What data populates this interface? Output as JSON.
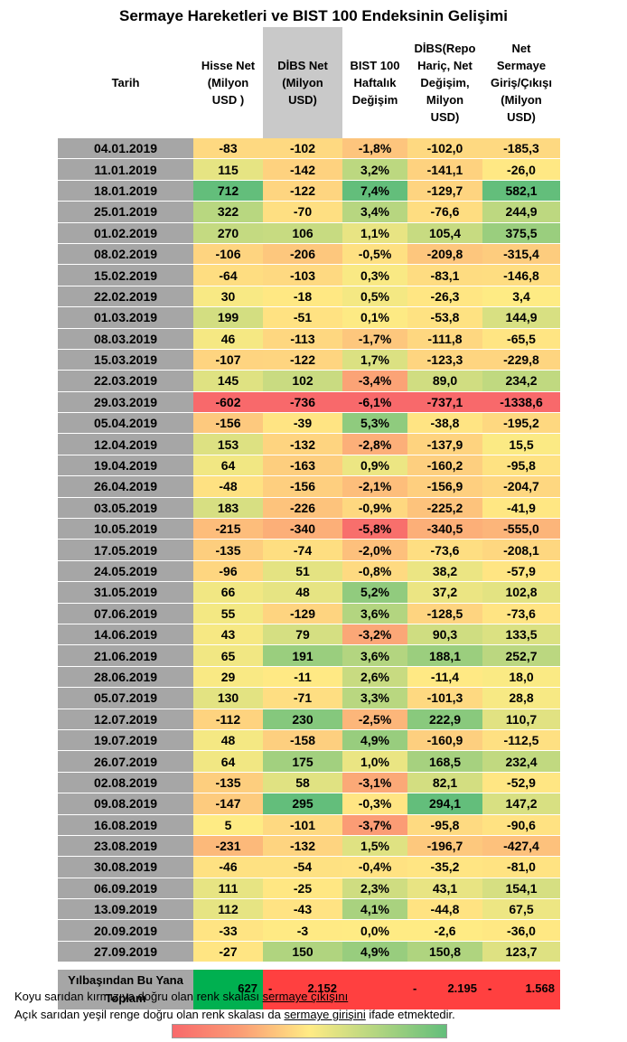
{
  "title": "Sermaye Hareketleri ve BIST 100 Endeksinin Gelişimi",
  "chart_data": {
    "type": "table",
    "headers": [
      "Tarih",
      "Hisse Net (Milyon USD )",
      "DİBS Net (Milyon USD)",
      "BIST 100 Haftalık Değişim",
      "DİBS(Repo Hariç, Net Değişim, Milyon USD)",
      "Net Sermaye Giriş/Çıkışı (Milyon USD)"
    ],
    "rows": [
      [
        "04.01.2019",
        "-83",
        "-102",
        "-1,8%",
        "-102,0",
        "-185,3"
      ],
      [
        "11.01.2019",
        "115",
        "-142",
        "3,2%",
        "-141,1",
        "-26,0"
      ],
      [
        "18.01.2019",
        "712",
        "-122",
        "7,4%",
        "-129,7",
        "582,1"
      ],
      [
        "25.01.2019",
        "322",
        "-70",
        "3,4%",
        "-76,6",
        "244,9"
      ],
      [
        "01.02.2019",
        "270",
        "106",
        "1,1%",
        "105,4",
        "375,5"
      ],
      [
        "08.02.2019",
        "-106",
        "-206",
        "-0,5%",
        "-209,8",
        "-315,4"
      ],
      [
        "15.02.2019",
        "-64",
        "-103",
        "0,3%",
        "-83,1",
        "-146,8"
      ],
      [
        "22.02.2019",
        "30",
        "-18",
        "0,5%",
        "-26,3",
        "3,4"
      ],
      [
        "01.03.2019",
        "199",
        "-51",
        "0,1%",
        "-53,8",
        "144,9"
      ],
      [
        "08.03.2019",
        "46",
        "-113",
        "-1,7%",
        "-111,8",
        "-65,5"
      ],
      [
        "15.03.2019",
        "-107",
        "-122",
        "1,7%",
        "-123,3",
        "-229,8"
      ],
      [
        "22.03.2019",
        "145",
        "102",
        "-3,4%",
        "89,0",
        "234,2"
      ],
      [
        "29.03.2019",
        "-602",
        "-736",
        "-6,1%",
        "-737,1",
        "-1338,6"
      ],
      [
        "05.04.2019",
        "-156",
        "-39",
        "5,3%",
        "-38,8",
        "-195,2"
      ],
      [
        "12.04.2019",
        "153",
        "-132",
        "-2,8%",
        "-137,9",
        "15,5"
      ],
      [
        "19.04.2019",
        "64",
        "-163",
        "0,9%",
        "-160,2",
        "-95,8"
      ],
      [
        "26.04.2019",
        "-48",
        "-156",
        "-2,1%",
        "-156,9",
        "-204,7"
      ],
      [
        "03.05.2019",
        "183",
        "-226",
        "-0,9%",
        "-225,2",
        "-41,9"
      ],
      [
        "10.05.2019",
        "-215",
        "-340",
        "-5,8%",
        "-340,5",
        "-555,0"
      ],
      [
        "17.05.2019",
        "-135",
        "-74",
        "-2,0%",
        "-73,6",
        "-208,1"
      ],
      [
        "24.05.2019",
        "-96",
        "51",
        "-0,8%",
        "38,2",
        "-57,9"
      ],
      [
        "31.05.2019",
        "66",
        "48",
        "5,2%",
        "37,2",
        "102,8"
      ],
      [
        "07.06.2019",
        "55",
        "-129",
        "3,6%",
        "-128,5",
        "-73,6"
      ],
      [
        "14.06.2019",
        "43",
        "79",
        "-3,2%",
        "90,3",
        "133,5"
      ],
      [
        "21.06.2019",
        "65",
        "191",
        "3,6%",
        "188,1",
        "252,7"
      ],
      [
        "28.06.2019",
        "29",
        "-11",
        "2,6%",
        "-11,4",
        "18,0"
      ],
      [
        "05.07.2019",
        "130",
        "-71",
        "3,3%",
        "-101,3",
        "28,8"
      ],
      [
        "12.07.2019",
        "-112",
        "230",
        "-2,5%",
        "222,9",
        "110,7"
      ],
      [
        "19.07.2019",
        "48",
        "-158",
        "4,9%",
        "-160,9",
        "-112,5"
      ],
      [
        "26.07.2019",
        "64",
        "175",
        "1,0%",
        "168,5",
        "232,4"
      ],
      [
        "02.08.2019",
        "-135",
        "58",
        "-3,1%",
        "82,1",
        "-52,9"
      ],
      [
        "09.08.2019",
        "-147",
        "295",
        "-0,3%",
        "294,1",
        "147,2"
      ],
      [
        "16.08.2019",
        "5",
        "-101",
        "-3,7%",
        "-95,8",
        "-90,6"
      ],
      [
        "23.08.2019",
        "-231",
        "-132",
        "1,5%",
        "-196,7",
        "-427,4"
      ],
      [
        "30.08.2019",
        "-46",
        "-54",
        "-0,4%",
        "-35,2",
        "-81,0"
      ],
      [
        "06.09.2019",
        "111",
        "-25",
        "2,3%",
        "43,1",
        "154,1"
      ],
      [
        "13.09.2019",
        "112",
        "-43",
        "4,1%",
        "-44,8",
        "67,5"
      ],
      [
        "20.09.2019",
        "-33",
        "-3",
        "0,0%",
        "-2,6",
        "-36,0"
      ],
      [
        "27.09.2019",
        "-27",
        "150",
        "4,9%",
        "150,8",
        "123,7"
      ]
    ],
    "total": {
      "label": "Yılbaşından Bu Yana Toplam",
      "values": [
        {
          "dash": "",
          "value": "627"
        },
        {
          "dash": "-",
          "value": "2.152"
        },
        {
          "dash": "",
          "value": ""
        },
        {
          "dash": "-",
          "value": "2.195"
        },
        {
          "dash": "-",
          "value": "1.568"
        }
      ]
    },
    "color_scale": {
      "negative": "#f8696b",
      "mid": "#ffeb84",
      "positive": "#63be7b",
      "total_positive": "#00b050",
      "total_negative": "#ff4040"
    }
  },
  "notes": {
    "line1_text": "Koyu sarıdan kırmızıya doğru olan renk skalası ",
    "line1_underlined": "sermaye çıkışını",
    "line2_text": "Açık sarıdan yeşil renge doğru olan renk skalası da ",
    "line2_underlined": "sermaye girişini",
    "line2_tail": " ifade etmektedir."
  }
}
